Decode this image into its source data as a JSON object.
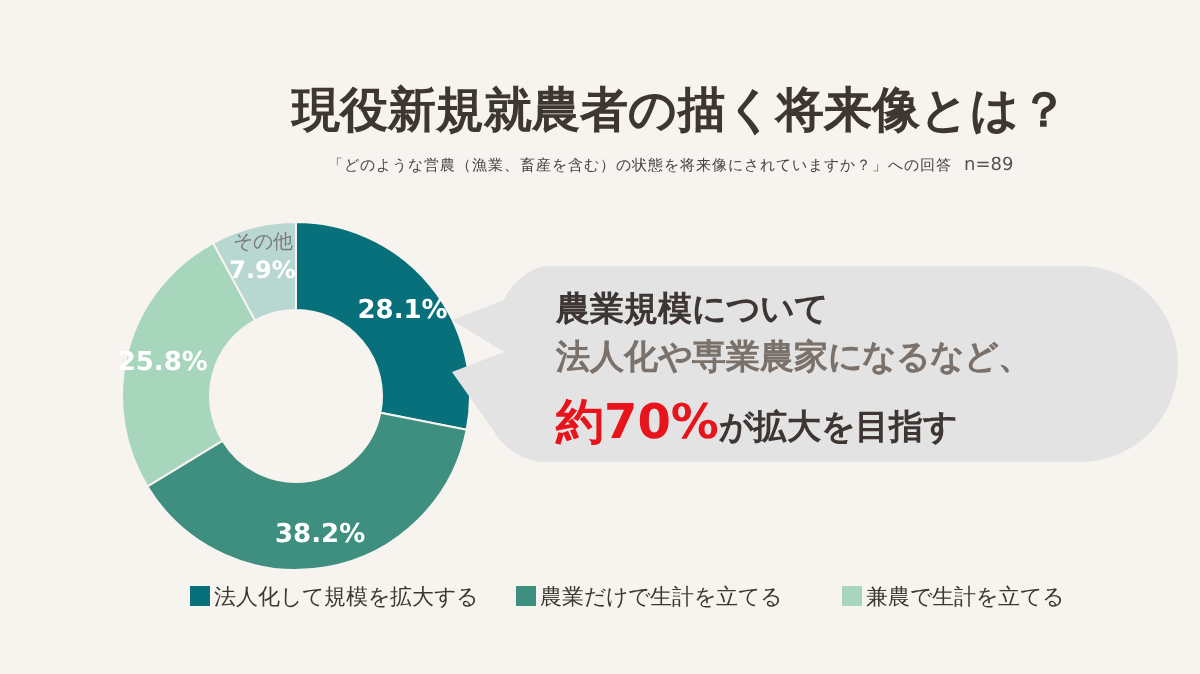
{
  "chart_data": {
    "type": "donut",
    "title": "現役新規就農者の描く将来像とは？",
    "subtitle": "「どのような営農（漁業、畜産を含む）の状態を将来像にされていますか？」への回答",
    "categories": [
      "法人化して規模を拡大する",
      "農業だけで生計を立てる",
      "兼農で生計を立てる",
      "その他"
    ],
    "values": [
      28.1,
      38.2,
      25.8,
      7.9
    ],
    "colors": [
      "#08707a",
      "#3e8f7f",
      "#a7d6bd",
      "#b9d7d1"
    ],
    "value_labels": [
      "28.1%",
      "38.2%",
      "25.8%",
      "7.9%"
    ],
    "legend": "bottom",
    "annotations": [
      "n=89",
      "農業規模について",
      "法人化や専業農家になるなど、",
      "約70%",
      "が拡大を目指す"
    ]
  }
}
